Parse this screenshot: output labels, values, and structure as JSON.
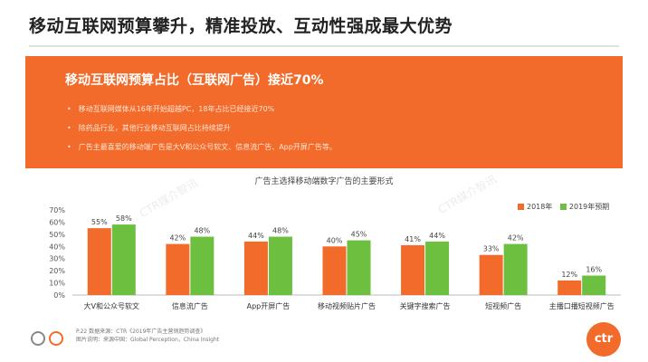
{
  "header": {
    "title": "移动互联网预算攀升，精准投放、互动性强成最大优势"
  },
  "banner": {
    "title": "移动互联网预算占比（互联网广告）接近70%",
    "bullets": [
      "移动互联网媒体从16年开始超越PC，18年占比已经接近70%",
      "除药品行业，其他行业移动互联网占比持续提升",
      "广告主最喜爱的移动端广告是大V和公众号软文、信息流广告、App开屏广告等。"
    ]
  },
  "chart_data": {
    "type": "bar",
    "title": "广告主选择移动端数字广告的主要形式",
    "categories": [
      "大V和公众号软文",
      "信息流广告",
      "App开屏广告",
      "移动视频贴片广告",
      "关键字搜索广告",
      "短视频广告",
      "主播口播短视频广告"
    ],
    "series": [
      {
        "name": "2018年",
        "values": [
          55,
          42,
          44,
          40,
          41,
          33,
          12
        ],
        "labels": [
          "55%",
          "42%",
          "44%",
          "40%",
          "41%",
          "33%",
          "12%"
        ]
      },
      {
        "name": "2019年预期",
        "values": [
          58,
          48,
          48,
          45,
          44,
          42,
          16
        ],
        "labels": [
          "58%",
          "48%",
          "48%",
          "45%",
          "44%",
          "42%",
          "16%"
        ]
      }
    ],
    "ylim": [
      0,
      70
    ],
    "yticks": [
      "0%",
      "10%",
      "20%",
      "30%",
      "40%",
      "50%",
      "60%",
      "70%"
    ],
    "legend_position": "top-right"
  },
  "colors": {
    "accent": "#f26b2a",
    "series_2018": "#f26b2a",
    "series_2019": "#6cbf3f"
  },
  "footer": {
    "source": "P.22 数据来源：CTR《2019年广告主营销趋势调查》",
    "photo": "图片说明：来源中国：Global Perception，China Insight"
  },
  "brand": {
    "logo": "ctr",
    "watermark": "CTR媒介智讯"
  }
}
